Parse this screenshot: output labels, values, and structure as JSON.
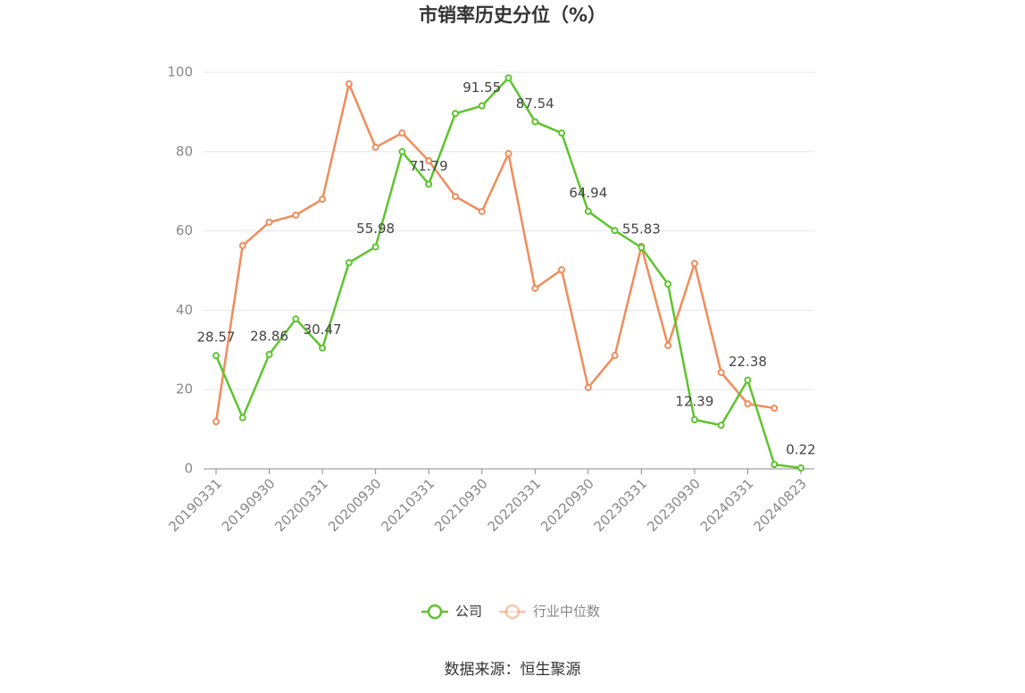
{
  "chart_data": {
    "type": "line",
    "title": "市销率历史分位（%）",
    "categories": [
      "20190331",
      null,
      "20190930",
      null,
      "20200331",
      null,
      "20200930",
      null,
      "20210331",
      null,
      "20210930",
      null,
      "20220331",
      null,
      "20220930",
      null,
      "20230331",
      null,
      "20230930",
      null,
      "20240331",
      null,
      "20240823"
    ],
    "series": [
      {
        "name": "公司",
        "color": "#5ec42e",
        "values": [
          28.57,
          12.9,
          28.86,
          37.8,
          30.47,
          52.0,
          55.98,
          80.0,
          71.79,
          89.6,
          91.55,
          98.6,
          87.54,
          84.7,
          64.94,
          60.1,
          55.83,
          46.6,
          12.39,
          11.0,
          22.38,
          1.1,
          0.22
        ]
      },
      {
        "name": "行业中位数",
        "color": "#f08c5a",
        "values": [
          11.9,
          56.3,
          62.2,
          64.0,
          68.0,
          97.1,
          81.1,
          84.7,
          77.7,
          68.7,
          64.9,
          79.5,
          45.5,
          50.2,
          20.5,
          28.6,
          56.1,
          31.1,
          51.8,
          24.3,
          16.4,
          15.3,
          null
        ]
      }
    ],
    "ylim": [
      0,
      100
    ],
    "yticks": [
      0,
      20,
      40,
      60,
      80,
      100
    ],
    "grid": true,
    "source": "数据来源：恒生聚源"
  }
}
